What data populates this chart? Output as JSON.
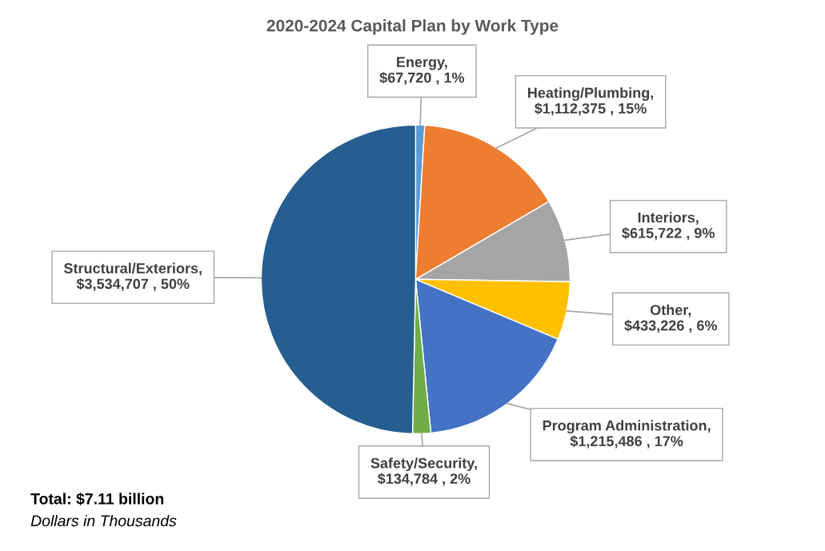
{
  "chart_data": {
    "type": "pie",
    "title": "2020-2024 Capital Plan by Work Type",
    "categories": [
      "Energy",
      "Heating/Plumbing",
      "Interiors",
      "Other",
      "Program Administration",
      "Safety/Security",
      "Structural/Exteriors"
    ],
    "values": [
      67720,
      1112375,
      615722,
      433226,
      1215486,
      134784,
      3534707
    ],
    "value_labels": [
      ",\n$67,720 , 1%",
      ",\n$1,112,375 , 15%",
      ",\n$615,722 , 9%",
      ",\n$433,226 , 6%",
      ",\n$1,215,486 , 17%",
      ",\n$134,784 , 2%",
      ",\n$3,534,707 , 50%"
    ],
    "colors": [
      "#5b9bd5",
      "#ed7d31",
      "#a5a5a5",
      "#ffc000",
      "#4472c4",
      "#70ad47",
      "#255e91"
    ],
    "annotations": [
      "Total: $7.11 billion",
      "Dollars in Thousands"
    ],
    "legend": false
  }
}
